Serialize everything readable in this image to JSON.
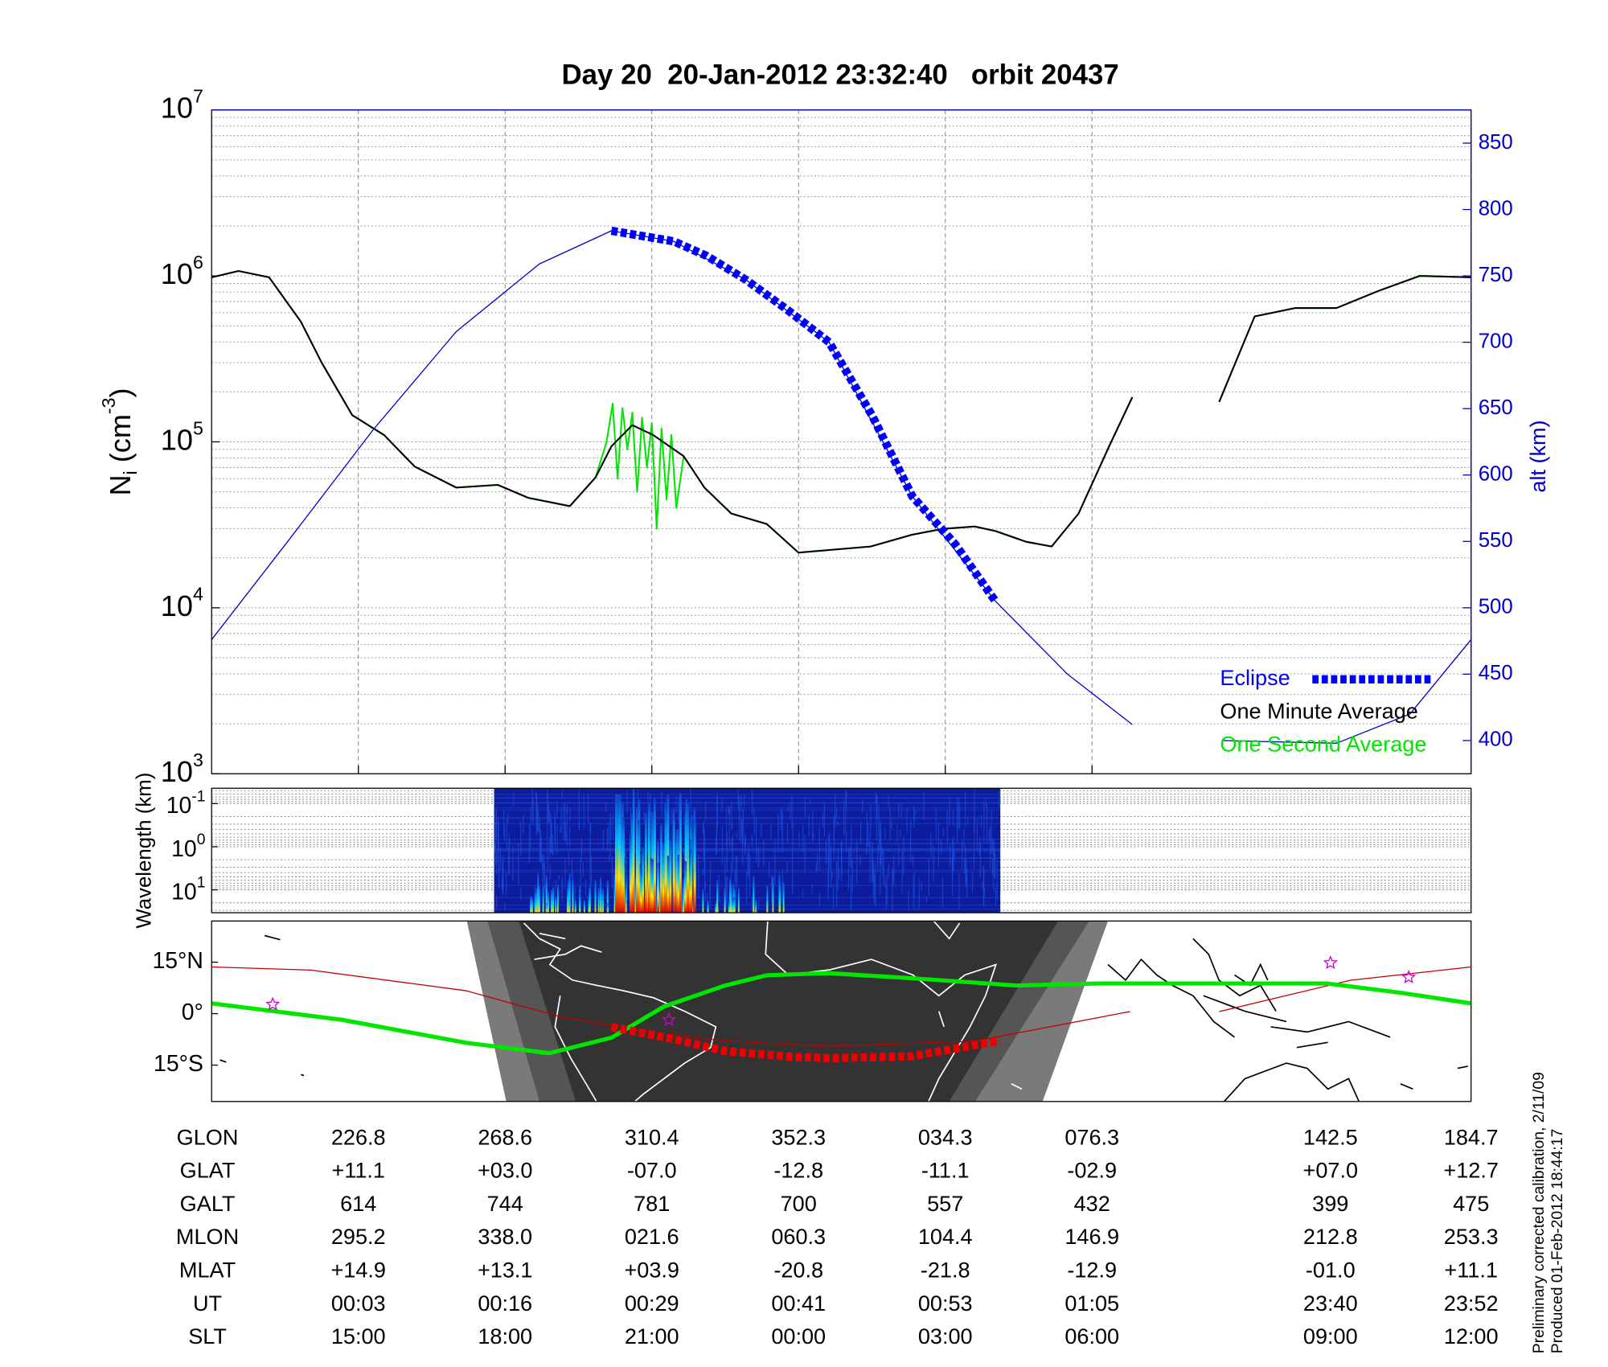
{
  "chart_data": [
    {
      "type": "line",
      "title": "Day 20  20-Jan-2012 23:32:40   orbit 20437",
      "ylabel": {
        "symbol": "N",
        "subscript": "i",
        "unit": " (cm",
        "exponent": "-3",
        "close": ")"
      },
      "y2label": "alt (km)",
      "xlim": [
        0,
        103
      ],
      "xticks": [
        12,
        24,
        36,
        48,
        60,
        72
      ],
      "ylim": [
        1000,
        10000000
      ],
      "log_y": true,
      "yticks": [
        {
          "value": 1000,
          "label": "10",
          "exp": "3"
        },
        {
          "value": 10000,
          "label": "10",
          "exp": "4"
        },
        {
          "value": 100000,
          "label": "10",
          "exp": "5"
        },
        {
          "value": 1000000,
          "label": "10",
          "exp": "6"
        },
        {
          "value": 10000000,
          "label": "10",
          "exp": "7"
        }
      ],
      "y2lim": [
        375,
        875
      ],
      "y2ticks": [
        400,
        450,
        500,
        550,
        600,
        650,
        700,
        750,
        800,
        850
      ],
      "y2color": "#0000c8",
      "grid": true,
      "legend": "lower right",
      "series": [
        {
          "name": "Eclipse",
          "color": "#0000ff",
          "axis": "y2",
          "style": "dashed",
          "x": [
            32.7,
            37.8,
            40.5,
            43.7,
            47.0,
            50.5,
            54.0,
            57.3,
            60.8,
            64.1
          ],
          "values": [
            784,
            776,
            765,
            747,
            725,
            700,
            645,
            584,
            548,
            505
          ]
        },
        {
          "name": "One Minute Average",
          "color": "#000000",
          "x": [
            0,
            2.2,
            4.7,
            7.3,
            9.0,
            11.5,
            14.1,
            16.6,
            20.0,
            23.4,
            25.9,
            29.3,
            31.4,
            32.7,
            34.4,
            36.1,
            38.6,
            40.3,
            42.5,
            45.4,
            48.0,
            50.5,
            53.9,
            57.3,
            59.8,
            62.4,
            64.1,
            66.6,
            68.7,
            70.9,
            73.4,
            75.3,
            79,
            82.4,
            85.3,
            88.6,
            92.0,
            95.4,
            98.8,
            103
          ],
          "values": [
            980000,
            1070000,
            980000,
            530000,
            300000,
            145000,
            110000,
            71000,
            53000,
            55000,
            46000,
            41000,
            61000,
            94000,
            126000,
            110000,
            82000,
            53000,
            37000,
            32000,
            21500,
            22300,
            23400,
            27600,
            29900,
            30900,
            29000,
            25000,
            23400,
            37000,
            94000,
            186000,
            null,
            174000,
            570000,
            640000,
            640000,
            810000,
            1000000,
            980000
          ]
        },
        {
          "name": "One Second Average",
          "color": "#00e600",
          "x": [
            0,
            2.2,
            4.7,
            7.3,
            9.0,
            11.5,
            14.1,
            16.6,
            20.0,
            23.4,
            25.9,
            29.3,
            31.4,
            32.3,
            32.8,
            33.2,
            33.6,
            34.0,
            34.4,
            34.8,
            35.2,
            35.6,
            36.0,
            36.4,
            36.8,
            37.2,
            37.6,
            38.0,
            38.6,
            40.3,
            42.5,
            45.4,
            48.0,
            50.5,
            53.9,
            57.3,
            59.8,
            62.4,
            64.1,
            66.6,
            68.7,
            70.9,
            73.4,
            75.3,
            79,
            82.4,
            85.3,
            88.6,
            92.0,
            95.4,
            98.8,
            103
          ],
          "values": [
            980000,
            1070000,
            980000,
            530000,
            300000,
            145000,
            110000,
            71000,
            53000,
            55000,
            46000,
            41000,
            61000,
            100000,
            170000,
            60000,
            160000,
            90000,
            150000,
            50000,
            140000,
            70000,
            130000,
            30000,
            120000,
            45000,
            110000,
            40000,
            82000,
            53000,
            37000,
            32000,
            21500,
            22300,
            23400,
            27600,
            29900,
            30900,
            29000,
            25000,
            23400,
            37000,
            94000,
            186000,
            null,
            174000,
            570000,
            640000,
            640000,
            810000,
            1000000,
            980000
          ]
        },
        {
          "color": "#0000c8",
          "axis": "y2",
          "x": [
            0,
            6.4,
            13.2,
            20.0,
            26.8,
            32.7,
            37.8,
            43.7,
            50.5,
            57.3,
            64.1,
            70.0,
            75.3,
            79,
            82.7,
            92.0,
            98.0,
            103
          ],
          "values": [
            476,
            552,
            634,
            708,
            759,
            784,
            776,
            747,
            700,
            584,
            505,
            450,
            412,
            null,
            400,
            398,
            420,
            476
          ]
        }
      ]
    },
    {
      "type": "spectrogram",
      "ylabel": "Wavelength (km)",
      "xlim": [
        0,
        103
      ],
      "x": [
        23.1,
        64.5
      ],
      "log_y": true,
      "ylim": [
        34,
        0.044
      ],
      "yticks": [
        {
          "value": 0.1,
          "label": "10",
          "exp": "-1"
        },
        {
          "value": 1,
          "label": "10",
          "exp": "0"
        },
        {
          "value": 10,
          "label": "10",
          "exp": "1"
        }
      ],
      "grid": true
    },
    {
      "type": "map",
      "xlim": [
        0,
        103
      ],
      "ylim": [
        -25.6,
        27
      ],
      "yticks": [
        {
          "value": 15,
          "label": "15°N"
        },
        {
          "value": 0,
          "label": "0°"
        },
        {
          "value": -15,
          "label": "15°S"
        }
      ],
      "series": [
        {
          "color": "#c00000",
          "x": [
            0,
            8.1,
            20.8,
            28.5,
            35.3,
            42.0,
            50.5,
            62.4,
            75.1,
            79,
            82.4,
            93.1,
            103
          ],
          "values": [
            13.6,
            12.7,
            6.7,
            -0.9,
            -5,
            -8,
            -9.5,
            -8,
            0.6,
            null,
            0.6,
            9.7,
            13.6
          ]
        },
        {
          "color": "#00e600",
          "style": "thick",
          "x": [
            0,
            10.7,
            20.8,
            27.6,
            32.7,
            37.0,
            42.0,
            45.4,
            50.5,
            57.3,
            65.8,
            72.5,
            84.4,
            91.2,
            97.2,
            103
          ],
          "values": [
            3,
            -1.8,
            -8.5,
            -11.5,
            -7,
            2.1,
            8.2,
            11.2,
            11.8,
            10.3,
            8.2,
            8.8,
            8.8,
            8.8,
            6.1,
            3
          ]
        },
        {
          "color": "#ee0000",
          "style": "dashed",
          "x": [
            32.7,
            37.8,
            42.0,
            47.1,
            50.5,
            57.3,
            64.5
          ],
          "values": [
            -3.9,
            -7.5,
            -10.9,
            -12.5,
            -13,
            -12.4,
            -7.9
          ]
        }
      ],
      "markers": {
        "color": "#cc00cc",
        "x": [
          5.0,
          37.4,
          91.5,
          97.9
        ],
        "values": [
          2.7,
          -1.8,
          14.8,
          10.6
        ]
      }
    }
  ],
  "table": {
    "x": [
      12,
      24,
      36,
      48,
      60,
      72,
      91.5,
      103
    ],
    "rows": [
      {
        "label": "GLON",
        "values": [
          "226.8",
          "268.6",
          "310.4",
          "352.3",
          "034.3",
          "076.3",
          "142.5",
          "184.7"
        ]
      },
      {
        "label": "GLAT",
        "values": [
          "+11.1",
          "+03.0",
          "-07.0",
          "-12.8",
          "-11.1",
          "-02.9",
          "+07.0",
          "+12.7"
        ]
      },
      {
        "label": "GALT",
        "values": [
          "614",
          "744",
          "781",
          "700",
          "557",
          "432",
          "399",
          "475"
        ]
      },
      {
        "label": "MLON",
        "values": [
          "295.2",
          "338.0",
          "021.6",
          "060.3",
          "104.4",
          "146.9",
          "212.8",
          "253.3"
        ]
      },
      {
        "label": "MLAT",
        "values": [
          "+14.9",
          "+13.1",
          "+03.9",
          "-20.8",
          "-21.8",
          "-12.9",
          "-01.0",
          "+11.1"
        ]
      },
      {
        "label": "UT",
        "values": [
          "00:03",
          "00:16",
          "00:29",
          "00:41",
          "00:53",
          "01:05",
          "23:40",
          "23:52"
        ]
      },
      {
        "label": "SLT",
        "values": [
          "15:00",
          "18:00",
          "21:00",
          "00:00",
          "03:00",
          "06:00",
          "09:00",
          "12:00"
        ]
      }
    ]
  },
  "notes": [
    "Preliminary corrected calibration, 2/11/09",
    "Produced 01-Feb-2012 18:44:17"
  ]
}
